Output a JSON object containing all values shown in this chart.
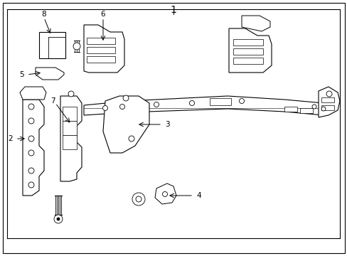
{
  "title": "1",
  "bg_color": "#ffffff",
  "line_color": "#000000",
  "fig_width": 4.89,
  "fig_height": 3.6,
  "dpi": 100,
  "label_fontsize": 7.5,
  "title_fontsize": 10
}
